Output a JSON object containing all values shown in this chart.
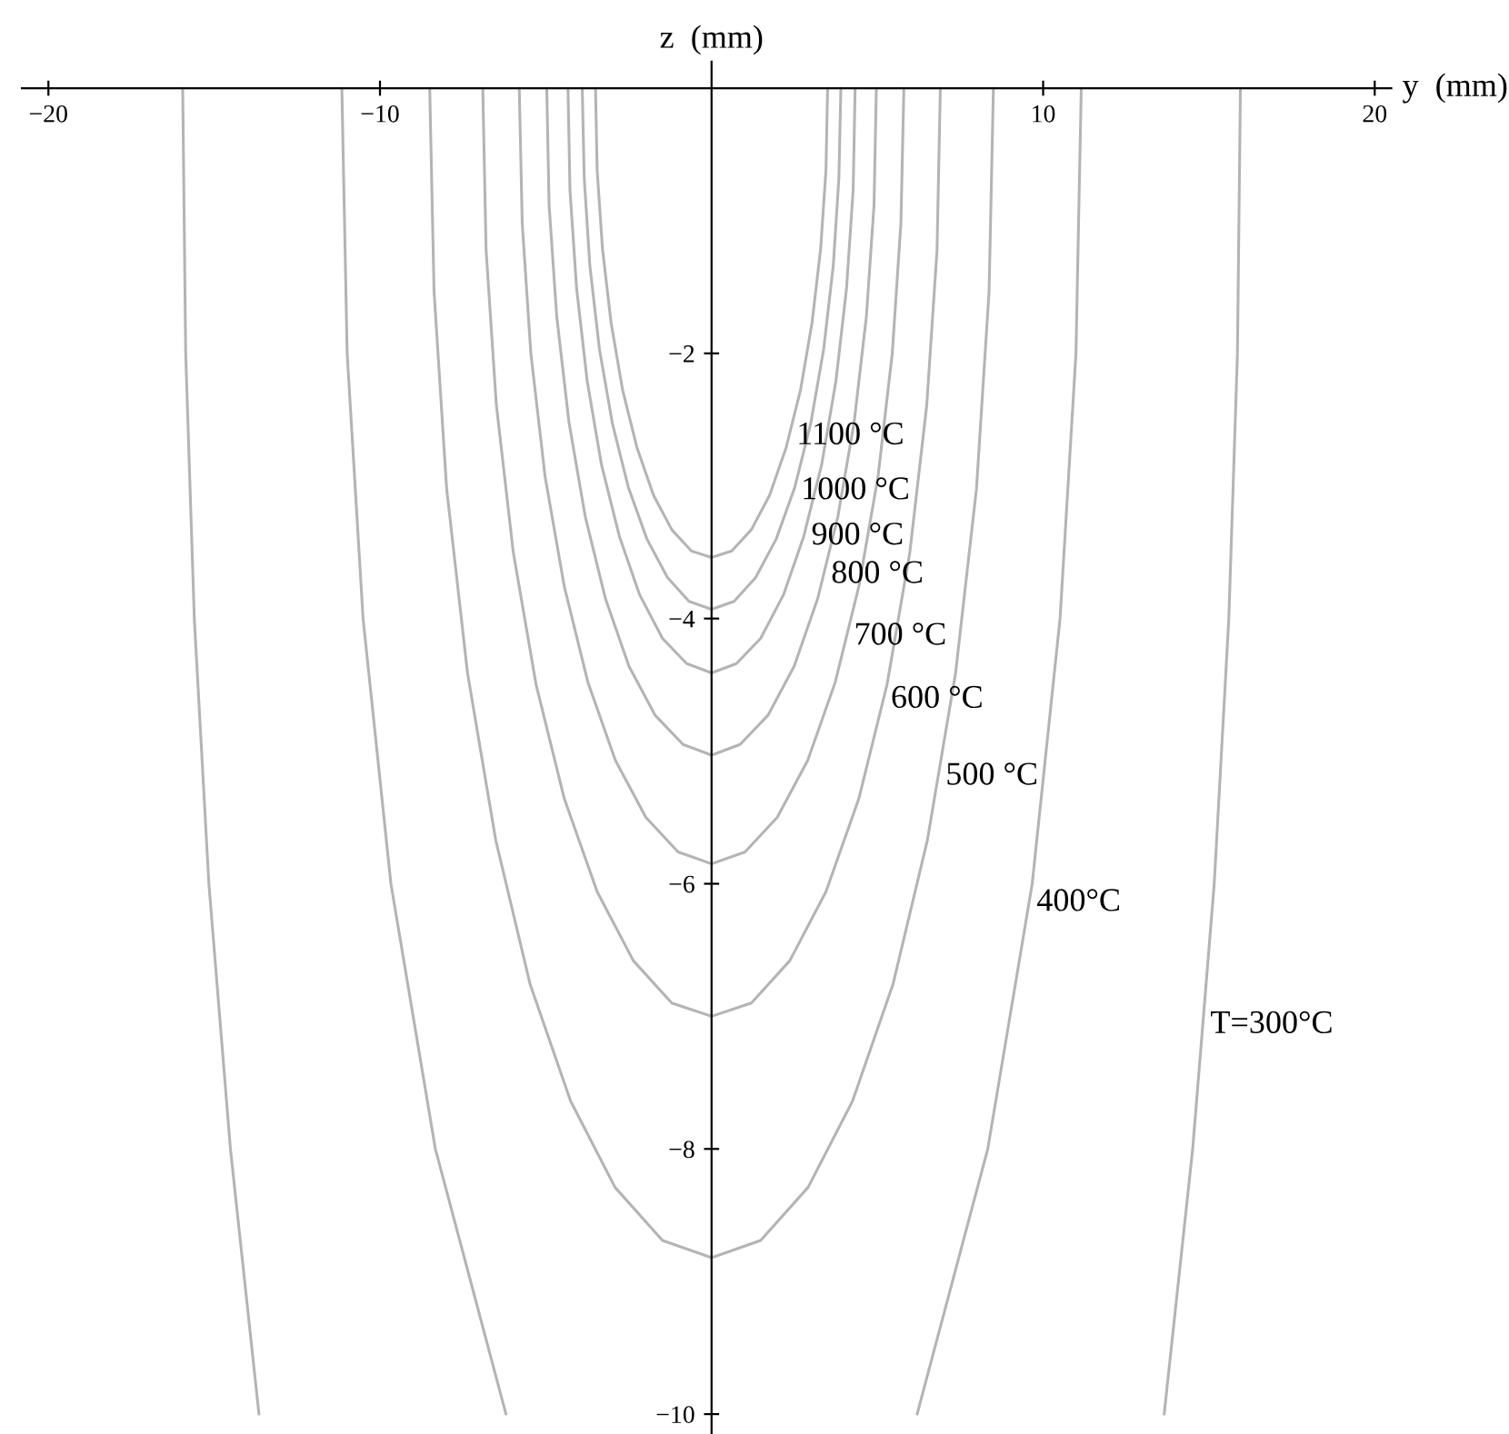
{
  "chart_data": {
    "type": "line",
    "xlabel": "y  (mm)",
    "ylabel": "z  (mm)",
    "xlim": [
      -20.8,
      20.5
    ],
    "ylim": [
      -10.15,
      0.2
    ],
    "xticks": [
      {
        "value": -20,
        "label": "−20"
      },
      {
        "value": -10,
        "label": "−10"
      },
      10,
      20
    ],
    "yticks": [
      {
        "value": -2,
        "label": "−2"
      },
      {
        "value": -4,
        "label": "−4"
      },
      {
        "value": -6,
        "label": "−6"
      },
      {
        "value": -8,
        "label": "−8"
      },
      {
        "value": -10,
        "label": "−10"
      }
    ],
    "grid": false,
    "legend": false,
    "marker": "none",
    "line_style": "solid",
    "series": [
      {
        "name": "1100 °C",
        "color": "#b4b4b4",
        "x": [
          -3.5,
          -3.45,
          -3.29,
          -3.03,
          -2.68,
          -2.25,
          -1.75,
          -1.2,
          -0.61,
          0,
          0.61,
          1.2,
          1.75,
          2.25,
          2.68,
          3.03,
          3.29,
          3.45,
          3.5
        ],
        "values": [
          0,
          -0.62,
          -1.21,
          -1.77,
          -2.28,
          -2.71,
          -3.07,
          -3.33,
          -3.49,
          -3.54,
          -3.49,
          -3.33,
          -3.07,
          -2.71,
          -2.28,
          -1.77,
          -1.21,
          -0.62,
          0
        ]
      },
      {
        "name": "1000 °C",
        "color": "#b4b4b4",
        "x": [
          -3.9,
          -3.84,
          -3.67,
          -3.38,
          -2.99,
          -2.51,
          -1.95,
          -1.33,
          -0.68,
          0,
          0.68,
          1.33,
          1.95,
          2.51,
          2.99,
          3.38,
          3.67,
          3.84,
          3.9
        ],
        "values": [
          0,
          -0.68,
          -1.34,
          -1.97,
          -2.53,
          -3.01,
          -3.4,
          -3.69,
          -3.87,
          -3.93,
          -3.87,
          -3.69,
          -3.4,
          -3.01,
          -2.53,
          -1.97,
          -1.34,
          -0.68,
          0
        ]
      },
      {
        "name": "900 °C",
        "color": "#b4b4b4",
        "x": [
          -4.33,
          -4.27,
          -4.07,
          -3.75,
          -3.32,
          -2.78,
          -2.17,
          -1.48,
          -0.75,
          0,
          0.75,
          1.48,
          2.17,
          2.78,
          3.32,
          3.75,
          4.07,
          4.27,
          4.33
        ],
        "values": [
          0,
          -0.77,
          -1.51,
          -2.21,
          -2.84,
          -3.38,
          -3.82,
          -4.15,
          -4.34,
          -4.41,
          -4.34,
          -4.15,
          -3.82,
          -3.38,
          -2.84,
          -2.21,
          -1.51,
          -0.77,
          0
        ]
      },
      {
        "name": "800 °C",
        "color": "#b4b4b4",
        "x": [
          -4.97,
          -4.9,
          -4.67,
          -4.3,
          -3.81,
          -3.2,
          -2.49,
          -1.7,
          -0.86,
          0,
          0.86,
          1.7,
          2.49,
          3.2,
          3.81,
          4.3,
          4.67,
          4.9,
          4.97
        ],
        "values": [
          0,
          -0.88,
          -1.72,
          -2.52,
          -3.23,
          -3.85,
          -4.36,
          -4.73,
          -4.95,
          -5.03,
          -4.95,
          -4.73,
          -4.36,
          -3.85,
          -3.23,
          -2.52,
          -1.72,
          -0.88,
          0
        ]
      },
      {
        "name": "700 °C",
        "color": "#b4b4b4",
        "x": [
          -5.8,
          -5.71,
          -5.45,
          -5.02,
          -4.44,
          -3.73,
          -2.9,
          -1.98,
          -1.01,
          0,
          1.01,
          1.98,
          2.9,
          3.73,
          4.44,
          5.02,
          5.45,
          5.71,
          5.8
        ],
        "values": [
          0,
          -1.02,
          -2.0,
          -2.93,
          -3.76,
          -4.48,
          -5.07,
          -5.5,
          -5.76,
          -5.85,
          -5.76,
          -5.5,
          -5.07,
          -4.48,
          -3.76,
          -2.93,
          -2.0,
          -1.02,
          0
        ]
      },
      {
        "name": "600 °C",
        "color": "#b4b4b4",
        "x": [
          -6.9,
          -6.8,
          -6.49,
          -5.98,
          -5.29,
          -4.44,
          -3.45,
          -2.36,
          -1.2,
          0,
          1.2,
          2.36,
          3.45,
          4.44,
          5.29,
          5.98,
          6.49,
          6.8,
          6.9
        ],
        "values": [
          0,
          -1.22,
          -2.39,
          -3.5,
          -4.5,
          -5.36,
          -6.06,
          -6.58,
          -6.9,
          -7.0,
          -6.9,
          -6.58,
          -6.06,
          -5.36,
          -4.5,
          -3.5,
          -2.39,
          -1.22,
          0
        ]
      },
      {
        "name": "500 °C",
        "color": "#b4b4b4",
        "x": [
          -8.5,
          -8.37,
          -7.99,
          -7.36,
          -6.51,
          -5.47,
          -4.25,
          -2.91,
          -1.48,
          0,
          1.48,
          2.91,
          4.25,
          5.47,
          6.51,
          7.36,
          7.99,
          8.37,
          8.5
        ],
        "values": [
          0,
          -1.53,
          -3.02,
          -4.41,
          -5.67,
          -6.76,
          -7.64,
          -8.29,
          -8.69,
          -8.82,
          -8.69,
          -8.29,
          -7.64,
          -6.76,
          -5.67,
          -4.41,
          -3.02,
          -1.53,
          0
        ]
      },
      {
        "name": "400°C",
        "color": "#b4b4b4",
        "x": [
          -11.15,
          -10.99,
          -10.51,
          -9.67,
          -8.33,
          -6.2,
          0,
          6.2,
          8.33,
          9.67,
          10.51,
          10.99,
          11.15
        ],
        "values": [
          0,
          -2,
          -4,
          -6,
          -8,
          -10,
          null,
          -10,
          -8,
          -6,
          -4,
          -2,
          0
        ]
      },
      {
        "name": "T=300°C",
        "color": "#b4b4b4",
        "x": [
          -15.95,
          -15.86,
          -15.6,
          -15.16,
          -14.51,
          -13.65,
          0,
          13.65,
          14.51,
          15.16,
          15.6,
          15.86,
          15.95
        ],
        "values": [
          0,
          -2,
          -4,
          -6,
          -8,
          -10,
          null,
          -10,
          -8,
          -6,
          -4,
          -2,
          0
        ]
      }
    ]
  }
}
